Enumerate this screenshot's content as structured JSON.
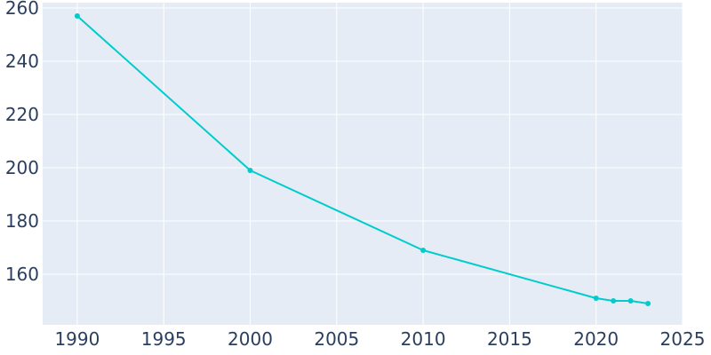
{
  "chart_data": {
    "type": "line",
    "title": "",
    "xlabel": "",
    "ylabel": "",
    "x": [
      1990,
      2000,
      2010,
      2020,
      2021,
      2022,
      2023
    ],
    "series": [
      {
        "values": [
          257,
          199,
          169,
          151,
          150,
          150,
          149
        ]
      }
    ],
    "xlim": [
      1988,
      2025
    ],
    "ylim": [
      141,
      262
    ],
    "xticks": [
      1990,
      1995,
      2000,
      2005,
      2010,
      2015,
      2020,
      2025
    ],
    "yticks": [
      160,
      180,
      200,
      220,
      240,
      260
    ],
    "grid": true,
    "colors": {
      "plot_background": "#e5ecf6",
      "grid": "#ffffff",
      "line": "#00cccc",
      "tick_text": "#2a3f5f"
    }
  }
}
